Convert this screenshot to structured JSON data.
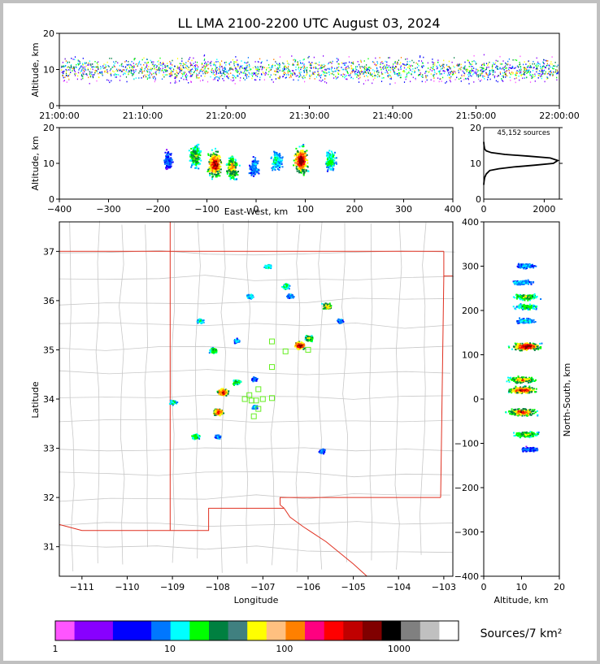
{
  "title": "LL LMA 2100-2200 UTC August 03, 2024",
  "source_count_text": "45,152 sources",
  "colorbar_label": "Sources/7 km²",
  "colorbar": {
    "ticks": [
      "1",
      "10",
      "100",
      "1000"
    ],
    "colors": [
      "#ff55ff",
      "#8800ff",
      "#8800ff",
      "#0000ff",
      "#0000ff",
      "#0077ff",
      "#00ffff",
      "#00ff00",
      "#008040",
      "#408080",
      "#ffff00",
      "#ffc080",
      "#ff8000",
      "#ff0080",
      "#ff0000",
      "#c00000",
      "#800000",
      "#000000",
      "#808080",
      "#c0c0c0",
      "#ffffff"
    ]
  },
  "chart_data": [
    {
      "type": "heatmap",
      "name": "time-height",
      "xlabel": "",
      "ylabel": "Altitude, km",
      "x_ticks": [
        "21:00:00",
        "21:10:00",
        "21:20:00",
        "21:30:00",
        "21:40:00",
        "21:50:00",
        "22:00:00"
      ],
      "ylim": [
        0,
        20
      ],
      "y_ticks": [
        0,
        10,
        20
      ],
      "altitude_core_km": [
        7,
        13
      ]
    },
    {
      "type": "heatmap",
      "name": "east-west-height",
      "xlabel": "East-West, km",
      "ylabel": "Altitude, km",
      "xlim": [
        -400,
        400
      ],
      "x_ticks": [
        -400,
        -300,
        -200,
        -100,
        0,
        100,
        200,
        300,
        400
      ],
      "ylim": [
        0,
        20
      ],
      "y_ticks": [
        0,
        10,
        20
      ],
      "clusters": [
        {
          "x": -180,
          "alt": 11,
          "intensity": 0.25
        },
        {
          "x": -125,
          "alt": 12,
          "intensity": 0.6
        },
        {
          "x": -85,
          "alt": 10,
          "intensity": 0.95
        },
        {
          "x": -50,
          "alt": 9,
          "intensity": 0.7
        },
        {
          "x": -5,
          "alt": 9,
          "intensity": 0.3
        },
        {
          "x": 40,
          "alt": 11,
          "intensity": 0.4
        },
        {
          "x": 90,
          "alt": 11,
          "intensity": 1.0
        },
        {
          "x": 150,
          "alt": 11,
          "intensity": 0.45
        }
      ]
    },
    {
      "type": "line",
      "name": "altitude-histogram",
      "xlim": [
        0,
        2500
      ],
      "x_ticks": [
        0,
        2000
      ],
      "ylim": [
        0,
        20
      ],
      "y_ticks": [
        0,
        10,
        20
      ],
      "x": [
        0,
        10,
        30,
        80,
        200,
        500,
        1000,
        1700,
        2300,
        2450,
        2200,
        1500,
        700,
        250,
        80,
        30,
        10,
        0
      ],
      "y": [
        4,
        5,
        6,
        7,
        8,
        8.5,
        9,
        9.5,
        10,
        10.8,
        11.5,
        12,
        12.5,
        13,
        13.5,
        14,
        15,
        16
      ]
    },
    {
      "type": "heatmap",
      "name": "plan-view-map",
      "xlabel": "Longitude",
      "ylabel": "Latitude",
      "xlim": [
        -111.5,
        -102.8
      ],
      "x_ticks": [
        -111,
        -110,
        -109,
        -108,
        -107,
        -106,
        -105,
        -104,
        -103
      ],
      "ylim": [
        30.4,
        37.6
      ],
      "y_ticks": [
        31,
        32,
        33,
        34,
        35,
        36,
        37
      ],
      "cells": [
        {
          "lon": -106.9,
          "lat": 36.7,
          "intensity": 0.4
        },
        {
          "lon": -106.5,
          "lat": 36.3,
          "intensity": 0.45
        },
        {
          "lon": -106.4,
          "lat": 36.1,
          "intensity": 0.3
        },
        {
          "lon": -107.3,
          "lat": 36.1,
          "intensity": 0.35
        },
        {
          "lon": -105.6,
          "lat": 35.9,
          "intensity": 0.7
        },
        {
          "lon": -106.2,
          "lat": 35.1,
          "intensity": 0.95
        },
        {
          "lon": -106.0,
          "lat": 35.25,
          "intensity": 0.6
        },
        {
          "lon": -105.3,
          "lat": 35.6,
          "intensity": 0.3
        },
        {
          "lon": -108.4,
          "lat": 35.6,
          "intensity": 0.35
        },
        {
          "lon": -108.1,
          "lat": 35.0,
          "intensity": 0.5
        },
        {
          "lon": -107.6,
          "lat": 35.2,
          "intensity": 0.3
        },
        {
          "lon": -107.6,
          "lat": 34.35,
          "intensity": 0.5
        },
        {
          "lon": -107.9,
          "lat": 34.15,
          "intensity": 0.9
        },
        {
          "lon": -108.0,
          "lat": 33.75,
          "intensity": 0.85
        },
        {
          "lon": -108.0,
          "lat": 33.25,
          "intensity": 0.3
        },
        {
          "lon": -108.5,
          "lat": 33.25,
          "intensity": 0.5
        },
        {
          "lon": -109.0,
          "lat": 33.95,
          "intensity": 0.4
        },
        {
          "lon": -107.2,
          "lat": 33.85,
          "intensity": 0.3
        },
        {
          "lon": -107.2,
          "lat": 34.42,
          "intensity": 0.25
        },
        {
          "lon": -105.7,
          "lat": 32.95,
          "intensity": 0.25
        }
      ],
      "stations": [
        {
          "lon": -106.8,
          "lat": 35.17
        },
        {
          "lon": -106.5,
          "lat": 34.97
        },
        {
          "lon": -106.0,
          "lat": 35.0
        },
        {
          "lon": -106.8,
          "lat": 34.65
        },
        {
          "lon": -107.1,
          "lat": 34.2
        },
        {
          "lon": -107.3,
          "lat": 34.08
        },
        {
          "lon": -107.4,
          "lat": 34.0
        },
        {
          "lon": -107.25,
          "lat": 33.97
        },
        {
          "lon": -107.15,
          "lat": 33.97
        },
        {
          "lon": -107.0,
          "lat": 34.0
        },
        {
          "lon": -107.1,
          "lat": 33.8
        },
        {
          "lon": -107.2,
          "lat": 33.65
        },
        {
          "lon": -106.8,
          "lat": 34.02
        }
      ]
    },
    {
      "type": "heatmap",
      "name": "north-south-height",
      "xlabel": "Altitude, km",
      "ylabel": "North-South, km",
      "xlim": [
        0,
        20
      ],
      "x_ticks": [
        0,
        10,
        20
      ],
      "ylim": [
        -400,
        400
      ],
      "y_ticks": [
        -400,
        -300,
        -200,
        -100,
        0,
        100,
        200,
        300,
        400
      ],
      "clusters": [
        {
          "ns": 302,
          "alt": 11,
          "intensity": 0.3
        },
        {
          "ns": 265,
          "alt": 10,
          "intensity": 0.35
        },
        {
          "ns": 232,
          "alt": 11,
          "intensity": 0.6
        },
        {
          "ns": 210,
          "alt": 11,
          "intensity": 0.5
        },
        {
          "ns": 178,
          "alt": 11,
          "intensity": 0.35
        },
        {
          "ns": 120,
          "alt": 11,
          "intensity": 1.0
        },
        {
          "ns": 45,
          "alt": 10,
          "intensity": 0.75
        },
        {
          "ns": 22,
          "alt": 10,
          "intensity": 0.9
        },
        {
          "ns": -28,
          "alt": 10,
          "intensity": 0.85
        },
        {
          "ns": -78,
          "alt": 11,
          "intensity": 0.6
        },
        {
          "ns": -112,
          "alt": 12,
          "intensity": 0.25
        }
      ]
    }
  ]
}
